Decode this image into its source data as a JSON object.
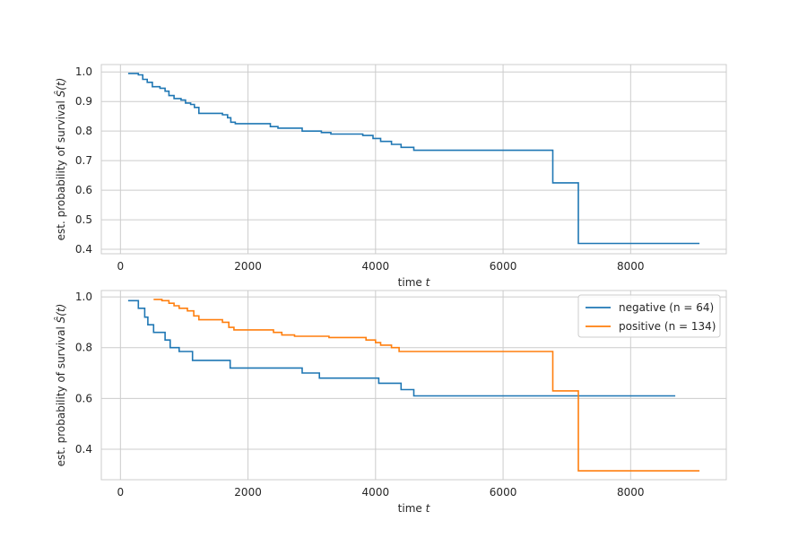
{
  "colors": {
    "series1": "#1f77b4",
    "series2": "#ff7f0e",
    "grid": "#cccccc",
    "frame": "#cccccc"
  },
  "chart_data": [
    {
      "type": "line",
      "xlabel": "time t",
      "ylabel": "est. probability of survival Ŝ(t)",
      "xlim": [
        -300,
        9500
      ],
      "ylim": [
        0.385,
        1.025
      ],
      "xticks": [
        "0",
        "2000",
        "4000",
        "6000",
        "8000"
      ],
      "yticks": [
        "0.4",
        "0.5",
        "0.6",
        "0.7",
        "0.8",
        "0.9",
        "1.0"
      ],
      "xtick_values": [
        0,
        2000,
        4000,
        6000,
        8000
      ],
      "ytick_values": [
        0.4,
        0.5,
        0.6,
        0.7,
        0.8,
        0.9,
        1.0
      ],
      "grid": true,
      "series": [
        {
          "step": true,
          "points": [
            [
              120,
              0.995
            ],
            [
              280,
              0.99
            ],
            [
              350,
              0.975
            ],
            [
              420,
              0.965
            ],
            [
              500,
              0.95
            ],
            [
              620,
              0.945
            ],
            [
              700,
              0.935
            ],
            [
              760,
              0.92
            ],
            [
              840,
              0.91
            ],
            [
              950,
              0.905
            ],
            [
              1020,
              0.895
            ],
            [
              1100,
              0.89
            ],
            [
              1160,
              0.88
            ],
            [
              1230,
              0.86
            ],
            [
              1600,
              0.855
            ],
            [
              1680,
              0.845
            ],
            [
              1730,
              0.83
            ],
            [
              1800,
              0.825
            ],
            [
              2350,
              0.815
            ],
            [
              2470,
              0.81
            ],
            [
              2850,
              0.8
            ],
            [
              3150,
              0.795
            ],
            [
              3300,
              0.79
            ],
            [
              3800,
              0.785
            ],
            [
              3960,
              0.775
            ],
            [
              4080,
              0.765
            ],
            [
              4250,
              0.755
            ],
            [
              4400,
              0.745
            ],
            [
              4600,
              0.735
            ],
            [
              6780,
              0.625
            ],
            [
              7180,
              0.42
            ],
            [
              9080,
              0.42
            ]
          ]
        }
      ]
    },
    {
      "type": "line",
      "xlabel": "time t",
      "ylabel": "est. probability of survival Ŝ(t)",
      "xlim": [
        -300,
        9500
      ],
      "ylim": [
        0.28,
        1.025
      ],
      "xticks": [
        "0",
        "2000",
        "4000",
        "6000",
        "8000"
      ],
      "yticks": [
        "0.4",
        "0.6",
        "0.8",
        "1.0"
      ],
      "xtick_values": [
        0,
        2000,
        4000,
        6000,
        8000
      ],
      "ytick_values": [
        0.4,
        0.6,
        0.8,
        1.0
      ],
      "grid": true,
      "legend_position": "upper right",
      "series": [
        {
          "name": "negative (n = 64)",
          "step": true,
          "points": [
            [
              120,
              0.985
            ],
            [
              280,
              0.955
            ],
            [
              380,
              0.92
            ],
            [
              430,
              0.89
            ],
            [
              520,
              0.86
            ],
            [
              700,
              0.83
            ],
            [
              780,
              0.8
            ],
            [
              920,
              0.785
            ],
            [
              1130,
              0.75
            ],
            [
              1720,
              0.72
            ],
            [
              2850,
              0.7
            ],
            [
              3120,
              0.68
            ],
            [
              4050,
              0.66
            ],
            [
              4400,
              0.635
            ],
            [
              4600,
              0.61
            ],
            [
              8700,
              0.61
            ]
          ]
        },
        {
          "name": "positive (n = 134)",
          "step": true,
          "points": [
            [
              520,
              0.99
            ],
            [
              650,
              0.985
            ],
            [
              760,
              0.975
            ],
            [
              840,
              0.965
            ],
            [
              920,
              0.955
            ],
            [
              1050,
              0.945
            ],
            [
              1150,
              0.925
            ],
            [
              1230,
              0.91
            ],
            [
              1600,
              0.9
            ],
            [
              1700,
              0.88
            ],
            [
              1780,
              0.87
            ],
            [
              2400,
              0.86
            ],
            [
              2530,
              0.85
            ],
            [
              2730,
              0.845
            ],
            [
              3270,
              0.84
            ],
            [
              3850,
              0.83
            ],
            [
              4000,
              0.82
            ],
            [
              4080,
              0.81
            ],
            [
              4250,
              0.8
            ],
            [
              4370,
              0.785
            ],
            [
              6780,
              0.63
            ],
            [
              7180,
              0.315
            ],
            [
              9080,
              0.315
            ]
          ]
        }
      ]
    }
  ]
}
